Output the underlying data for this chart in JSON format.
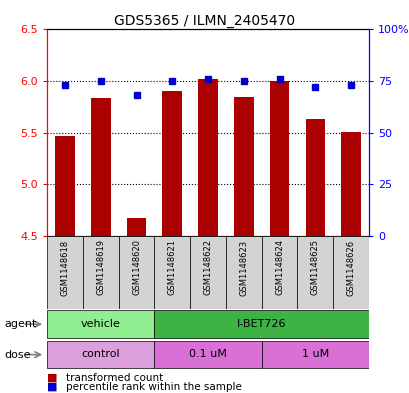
{
  "title": "GDS5365 / ILMN_2405470",
  "samples": [
    "GSM1148618",
    "GSM1148619",
    "GSM1148620",
    "GSM1148621",
    "GSM1148622",
    "GSM1148623",
    "GSM1148624",
    "GSM1148625",
    "GSM1148626"
  ],
  "red_values": [
    5.47,
    5.84,
    4.67,
    5.9,
    6.02,
    5.85,
    6.0,
    5.63,
    5.51
  ],
  "blue_values": [
    73,
    75,
    68,
    75,
    76,
    75,
    76,
    72,
    73
  ],
  "y_min": 4.5,
  "y_max": 6.5,
  "y_ticks_left": [
    4.5,
    5.0,
    5.5,
    6.0,
    6.5
  ],
  "y_ticks_right": [
    0,
    25,
    50,
    75,
    100
  ],
  "bar_color": "#AA0000",
  "dot_color": "#0000CC",
  "agent_vehicle_color": "#90EE90",
  "agent_ibet_color": "#3CB343",
  "dose_control_color": "#DDA0DD",
  "dose_01_color": "#DA70D6",
  "dose_1_color": "#DA70D6",
  "label_bg_color": "#D3D3D3",
  "fig_width": 4.1,
  "fig_height": 3.93,
  "dpi": 100
}
